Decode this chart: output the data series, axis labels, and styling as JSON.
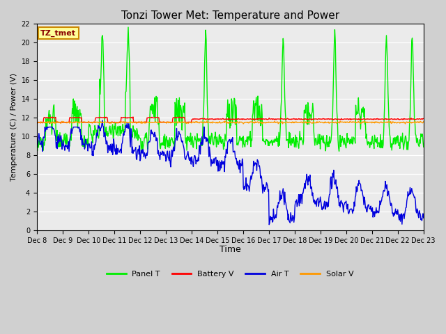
{
  "title": "Tonzi Tower Met: Temperature and Power",
  "ylabel": "Temperature (C) / Power (V)",
  "xlabel": "Time",
  "ylim": [
    0,
    22
  ],
  "plot_bg_color": "#ebebeb",
  "fig_bg_color": "#d0d0d0",
  "label_box": "TZ_tmet",
  "label_box_color": "#ffff99",
  "label_box_border": "#cc8800",
  "label_box_text_color": "#880000",
  "xtick_labels": [
    "Dec 8",
    "Dec 9",
    "Dec 10",
    "Dec 11",
    "Dec 12",
    "Dec 13",
    "Dec 14",
    "Dec 15",
    "Dec 16",
    "Dec 17",
    "Dec 18",
    "Dec 19",
    "Dec 20",
    "Dec 21",
    "Dec 22",
    "Dec 23"
  ],
  "panel_T_color": "#00ee00",
  "battery_V_color": "#ff0000",
  "air_T_color": "#0000dd",
  "solar_V_color": "#ff9900",
  "line_width": 1.0,
  "title_fontsize": 11,
  "tick_fontsize": 7,
  "ylabel_fontsize": 8,
  "xlabel_fontsize": 9
}
